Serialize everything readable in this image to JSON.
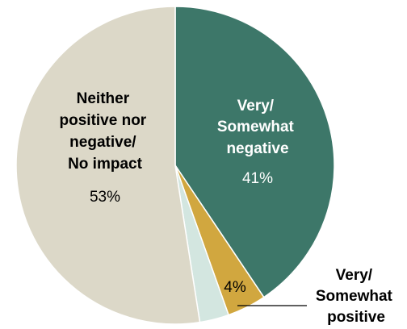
{
  "chart_data": {
    "type": "pie",
    "slices": [
      {
        "label_lines": [
          "Very/",
          "Somewhat",
          "negative"
        ],
        "value": 41,
        "value_label": "41%",
        "color": "#3d7769"
      },
      {
        "label_lines": [
          "Very/",
          "Somewhat",
          "positive"
        ],
        "value": 4,
        "value_label": "4%",
        "color": "#d1a73f"
      },
      {
        "label_lines": [],
        "value": 3,
        "value_label": "",
        "color": "#d3e6e0"
      },
      {
        "label_lines": [
          "Neither",
          "positive nor",
          "negative/",
          "No impact"
        ],
        "value": 53,
        "value_label": "53%",
        "color": "#dcd8c8"
      }
    ],
    "start_angle_deg": 0,
    "direction": "clockwise",
    "colors": {
      "text_dark": "#000000",
      "text_light": "#ffffff",
      "slice_border": "#ffffff",
      "leader_line": "#000000"
    }
  }
}
